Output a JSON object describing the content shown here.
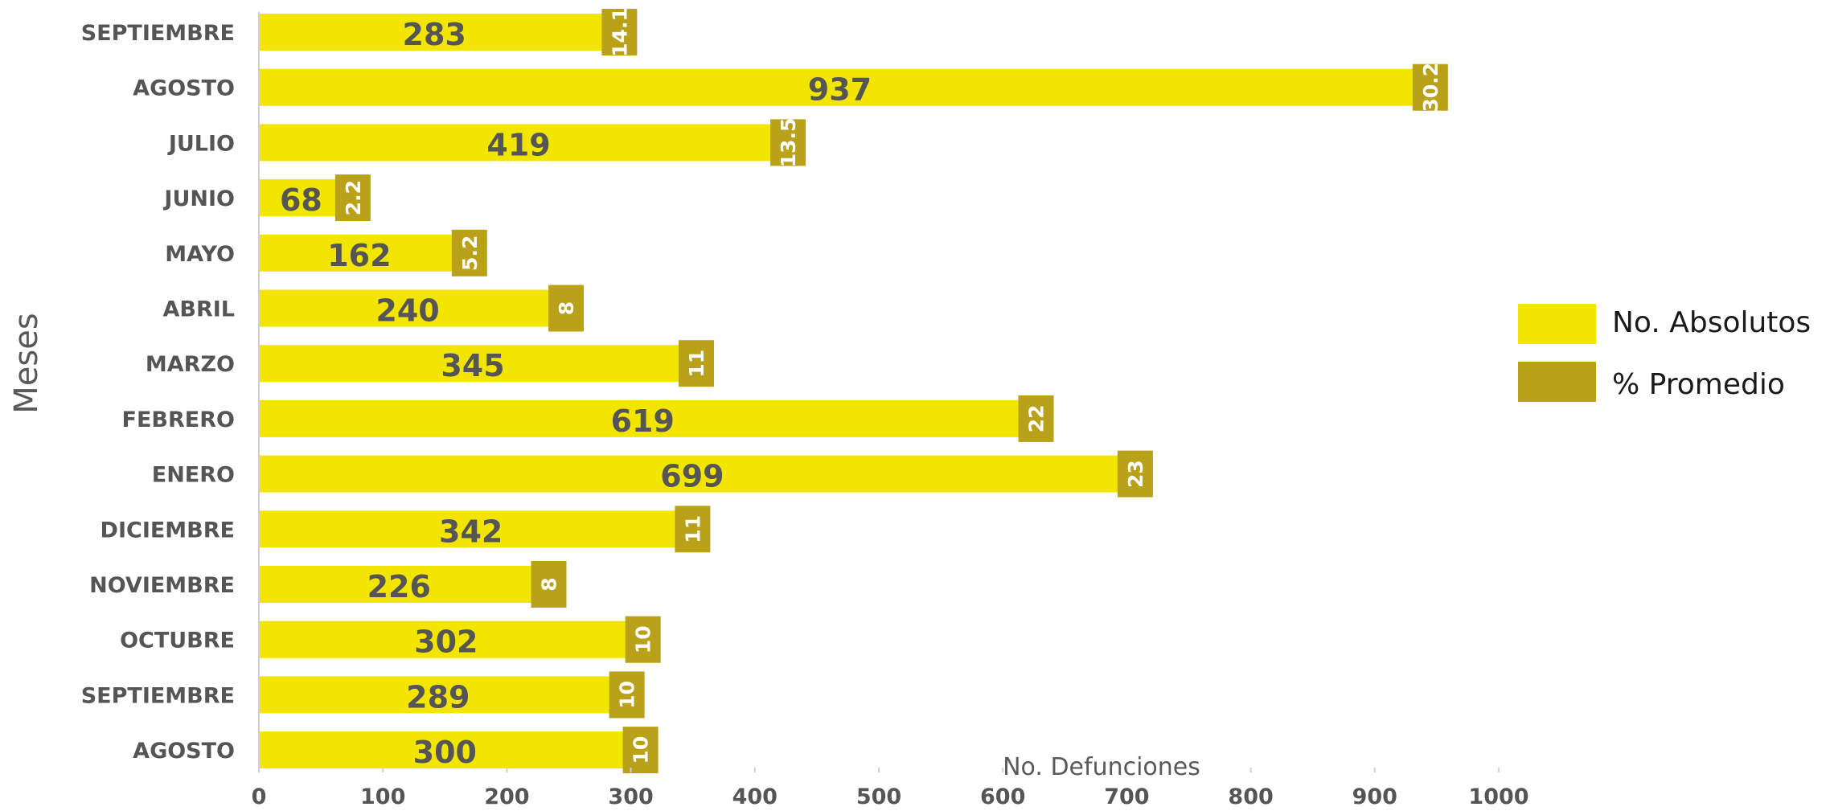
{
  "chart_data": {
    "type": "bar",
    "orientation": "horizontal",
    "categories": [
      "SEPTIEMBRE",
      "AGOSTO",
      "JULIO",
      "JUNIO",
      "MAYO",
      "ABRIL",
      "MARZO",
      "FEBRERO",
      "ENERO",
      "DICIEMBRE",
      "NOVIEMBRE",
      "OCTUBRE",
      "SEPTIEMBRE",
      "AGOSTO"
    ],
    "series": [
      {
        "name": "No. Absolutos",
        "color": "#F2E500",
        "values": [
          283,
          937,
          419,
          68,
          162,
          240,
          345,
          619,
          699,
          342,
          226,
          302,
          289,
          300
        ]
      },
      {
        "name": "% Promedio",
        "color": "#B9A11A",
        "values": [
          "14.1",
          "30.2",
          "13.5",
          "2.2",
          "5.2",
          "8",
          "11",
          "22",
          "23",
          "11",
          "8",
          "10",
          "10",
          "10"
        ]
      }
    ],
    "title": "",
    "xlabel": "No. Defunciones",
    "ylabel": "Meses",
    "xlim": [
      0,
      1000
    ],
    "xticks": [
      "0",
      "100",
      "200",
      "300",
      "400",
      "500",
      "600",
      "700",
      "800",
      "900",
      "1000"
    ],
    "grid": false,
    "legend_position": "right"
  }
}
